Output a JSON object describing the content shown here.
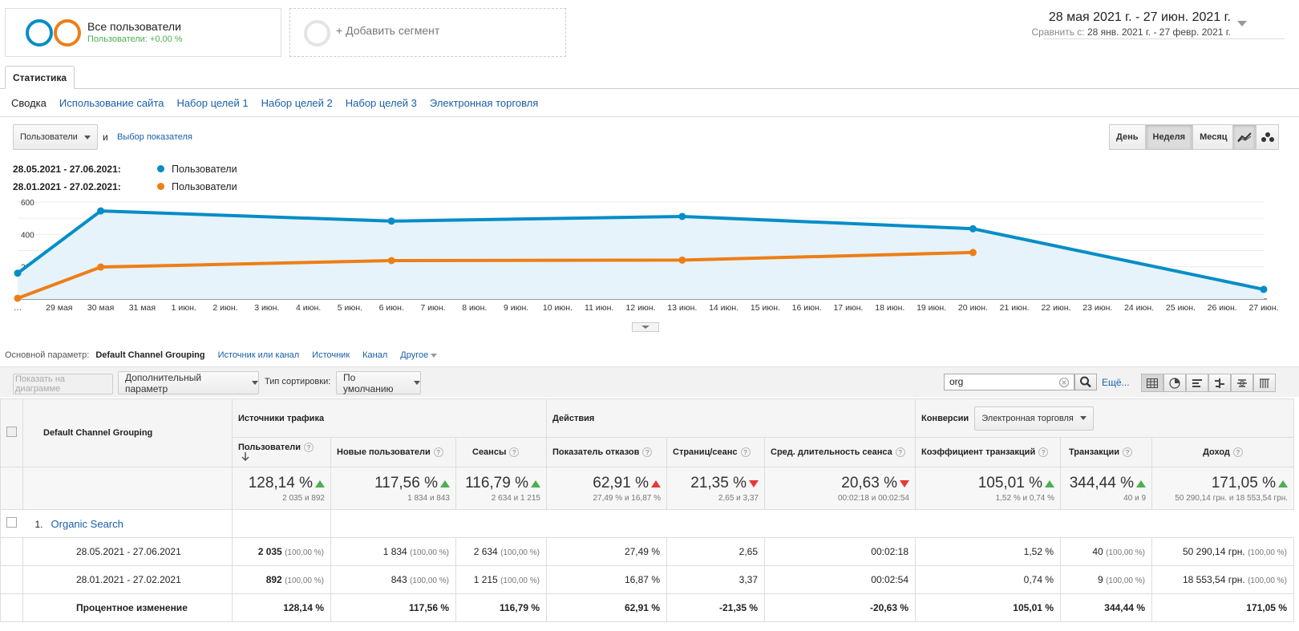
{
  "segments": {
    "all_users": {
      "title": "Все пользователи",
      "subtitle": "Пользователи: +0,00 %"
    },
    "add_segment": "+ Добавить сегмент"
  },
  "date_range": {
    "main": "28 мая 2021 г. - 27 июн. 2021 г.",
    "compare_label": "Сравнить с:",
    "compare_value": "28 янв. 2021 г. - 27 февр. 2021 г."
  },
  "tabs": {
    "active": "Статистика"
  },
  "subnav": [
    "Сводка",
    "Использование сайта",
    "Набор целей 1",
    "Набор целей 2",
    "Набор целей 3",
    "Электронная торговля"
  ],
  "metric": {
    "selected": "Пользователи",
    "and": "и",
    "choose": "Выбор показателя"
  },
  "granularity": [
    "День",
    "Неделя",
    "Месяц"
  ],
  "legend": [
    {
      "range": "28.05.2021 - 27.06.2021:",
      "label": "Пользователи",
      "color": "#058dc7"
    },
    {
      "range": "28.01.2021 - 27.02.2021:",
      "label": "Пользователи",
      "color": "#ed7e17"
    }
  ],
  "chart_data": {
    "type": "line",
    "x": [
      "…",
      "29 мая",
      "30 мая",
      "31 мая",
      "1 июн.",
      "2 июн.",
      "3 июн.",
      "4 июн.",
      "5 июн.",
      "6 июн.",
      "7 июн.",
      "8 июн.",
      "9 июн.",
      "10 июн.",
      "11 июн.",
      "12 июн.",
      "13 июн.",
      "14 июн.",
      "15 июн.",
      "16 июн.",
      "17 июн.",
      "18 июн.",
      "19 июн.",
      "20 июн.",
      "21 июн.",
      "22 июн.",
      "23 июн.",
      "24 июн.",
      "25 июн.",
      "26 июн.",
      "27 июн."
    ],
    "series": [
      {
        "name": "Пользователи",
        "color": "#058dc7",
        "fill": true,
        "points": [
          [
            0,
            160
          ],
          [
            2,
            545
          ],
          [
            9,
            482
          ],
          [
            16,
            511
          ],
          [
            23,
            435
          ],
          [
            30,
            60
          ]
        ]
      },
      {
        "name": "Пользователи",
        "color": "#ed7e17",
        "fill": false,
        "points": [
          [
            0,
            5
          ],
          [
            2,
            198
          ],
          [
            9,
            238
          ],
          [
            16,
            241
          ],
          [
            23,
            288
          ]
        ]
      }
    ],
    "y_ticks": [
      600,
      400,
      200
    ],
    "ylim": [
      0,
      600
    ],
    "grid": true
  },
  "dimensions": {
    "label": "Основной параметр:",
    "active": "Default Channel Grouping",
    "links": [
      "Источник или канал",
      "Источник",
      "Канал",
      "Другое"
    ]
  },
  "toolbar": {
    "plot_rows": "Показать на диаграмме",
    "secondary": "Дополнительный параметр",
    "sort_label": "Тип сортировки:",
    "sort_value": "По умолчанию",
    "search_value": "org",
    "more": "Ещё..."
  },
  "table": {
    "dim_header": "Default Channel Grouping",
    "groups": {
      "acquisition": "Источники трафика",
      "behavior": "Действия",
      "conversions": "Конверсии",
      "conv_select": "Электронная торговля"
    },
    "columns": [
      "Пользователи",
      "Новые пользователи",
      "Сеансы",
      "Показатель отказов",
      "Страниц/сеанс",
      "Сред. длительность сеанса",
      "Коэффициент транзакций",
      "Транзакции",
      "Доход"
    ],
    "totals": [
      {
        "big": "128,14 %",
        "small": "2 035 и 892",
        "dir": "up"
      },
      {
        "big": "117,56 %",
        "small": "1 834 и 843",
        "dir": "up"
      },
      {
        "big": "116,79 %",
        "small": "2 634 и 1 215",
        "dir": "up"
      },
      {
        "big": "62,91 %",
        "small": "27,49 % и 16,87 %",
        "dir": "upr"
      },
      {
        "big": "21,35 %",
        "small": "2,65 и 3,37",
        "dir": "dn"
      },
      {
        "big": "20,63 %",
        "small": "00:02:18 и 00:02:54",
        "dir": "dn"
      },
      {
        "big": "105,01 %",
        "small": "1,52 % и 0,74 %",
        "dir": "up"
      },
      {
        "big": "344,44 %",
        "small": "40 и 9",
        "dir": "up"
      },
      {
        "big": "171,05 %",
        "small": "50 290,14 грн. и 18 553,54 грн.",
        "dir": "up"
      }
    ],
    "channel": {
      "num": "1.",
      "name": "Organic Search"
    },
    "rows": [
      {
        "label": "28.05.2021 - 27.06.2021",
        "cells": [
          [
            "2 035",
            "(100,00 %)"
          ],
          [
            "1 834",
            "(100,00 %)"
          ],
          [
            "2 634",
            "(100,00 %)"
          ],
          [
            "27,49 %",
            ""
          ],
          [
            "2,65",
            ""
          ],
          [
            "00:02:18",
            ""
          ],
          [
            "1,52 %",
            ""
          ],
          [
            "40",
            "(100,00 %)"
          ],
          [
            "50 290,14 грн.",
            "(100,00 %)"
          ]
        ]
      },
      {
        "label": "28.01.2021 - 27.02.2021",
        "cells": [
          [
            "892",
            "(100,00 %)"
          ],
          [
            "843",
            "(100,00 %)"
          ],
          [
            "1 215",
            "(100,00 %)"
          ],
          [
            "16,87 %",
            ""
          ],
          [
            "3,37",
            ""
          ],
          [
            "00:02:54",
            ""
          ],
          [
            "0,74 %",
            ""
          ],
          [
            "9",
            "(100,00 %)"
          ],
          [
            "18 553,54 грн.",
            "(100,00 %)"
          ]
        ]
      },
      {
        "label": "Процентное изменение",
        "bold": true,
        "cells": [
          [
            "128,14 %",
            ""
          ],
          [
            "117,56 %",
            ""
          ],
          [
            "116,79 %",
            ""
          ],
          [
            "62,91 %",
            ""
          ],
          [
            "-21,35 %",
            ""
          ],
          [
            "-20,63 %",
            ""
          ],
          [
            "105,01 %",
            ""
          ],
          [
            "344,44 %",
            ""
          ],
          [
            "171,05 %",
            ""
          ]
        ]
      }
    ]
  }
}
